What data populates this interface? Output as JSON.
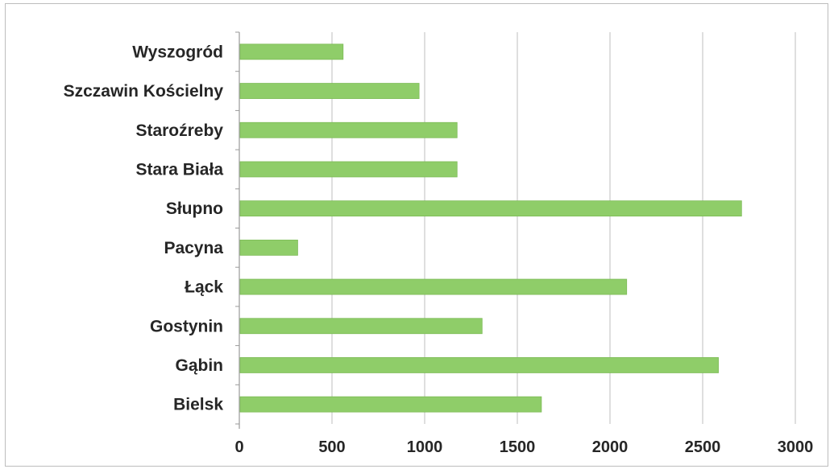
{
  "chart_data": {
    "type": "bar",
    "orientation": "horizontal",
    "categories": [
      "Wyszogród",
      "Szczawin Kościelny",
      "Staroźreby",
      "Stara Biała",
      "Słupno",
      "Pacyna",
      "Łąck",
      "Gostynin",
      "Gąbin",
      "Bielsk"
    ],
    "values": [
      560,
      970,
      1175,
      1175,
      2710,
      315,
      2090,
      1310,
      2585,
      1630
    ],
    "xlim": [
      0,
      3000
    ],
    "x_ticks": [
      "0",
      "500",
      "1000",
      "1500",
      "2000",
      "2500",
      "3000"
    ],
    "grid": "vertical",
    "legend": "none",
    "colors": {
      "bar": "#8fcd69",
      "bar_edge": "#7dbb57",
      "grid": "#bfbfbf",
      "axis": "#9a9a9a"
    }
  }
}
